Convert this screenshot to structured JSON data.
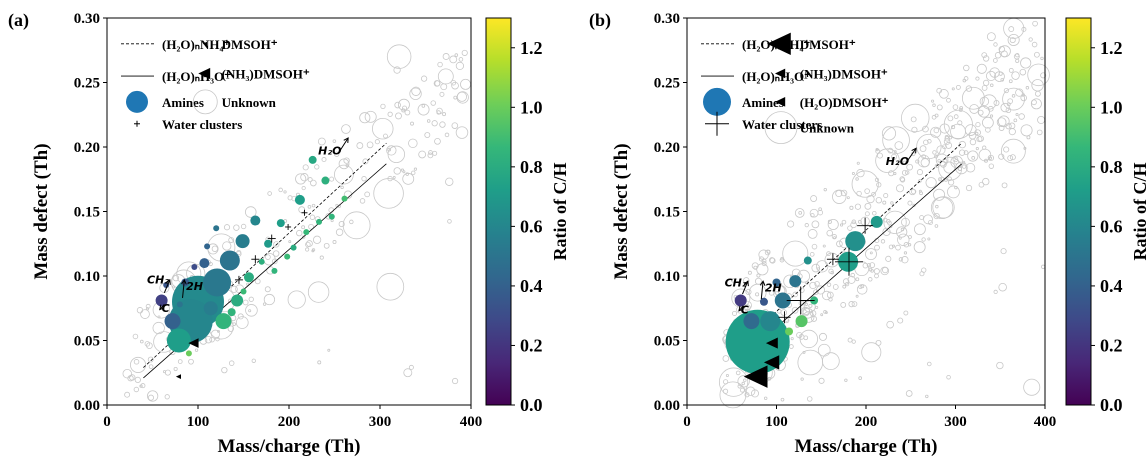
{
  "colormap": [
    "#440154",
    "#482878",
    "#3e4a89",
    "#31688e",
    "#26828e",
    "#1f9e89",
    "#35b779",
    "#6ece58",
    "#b5de2b",
    "#fde725"
  ],
  "colors": {
    "unknown": "#c8c8c8",
    "black": "#000000"
  },
  "panels": [
    {
      "panel_label": "(a)",
      "xlabel": "Mass/charge (Th)",
      "ylabel": "Mass defect (Th)",
      "colorbar_label": "Ratio of C/H",
      "xticks": [
        "0",
        "100",
        "200",
        "300",
        "400"
      ],
      "yticks": [
        "0.00",
        "0.05",
        "0.10",
        "0.15",
        "0.20",
        "0.25",
        "0.30"
      ],
      "cbticks": [
        "0.0",
        "0.2",
        "0.4",
        "0.6",
        "0.8",
        "1.0",
        "1.2"
      ],
      "legend": [
        {
          "marker": "dash",
          "label": "(H₂O)ₙNH₄⁺"
        },
        {
          "marker": "solid",
          "label": "(H₂O)ₙH₃O⁺"
        },
        {
          "marker": "circle",
          "label": "Amines"
        },
        {
          "marker": "plus",
          "label": "Water clusters"
        },
        {
          "marker": "tri",
          "label": "DMSOH⁺"
        },
        {
          "marker": "tri",
          "label": "(NH₃)DMSOH⁺"
        },
        {
          "marker": "open",
          "label": "Unknown"
        }
      ],
      "annotations": [
        {
          "text": "H₂O",
          "x": 232,
          "y": 0.194
        },
        {
          "text": "CH₂",
          "x": 44,
          "y": 0.094
        },
        {
          "text": "2H",
          "x": 87,
          "y": 0.089
        },
        {
          "text": "C",
          "x": 60,
          "y": 0.072
        }
      ],
      "chart_data": {
        "type": "scatter",
        "xlim": [
          0,
          400
        ],
        "ylim": [
          0,
          0.3
        ],
        "clim": [
          0,
          1.3
        ],
        "lines": [
          {
            "name": "(H₂O)ₙNH₄⁺",
            "style": "dashed",
            "x": [
              40,
              307
            ],
            "y": [
              0.029,
              0.203
            ]
          },
          {
            "name": "(H₂O)ₙH₃O⁺",
            "style": "solid",
            "x": [
              40,
              307
            ],
            "y": [
              0.021,
              0.187
            ]
          }
        ],
        "amines": [
          {
            "x": 100,
            "y": 0.08,
            "s": 26,
            "c": 0.62
          },
          {
            "x": 92,
            "y": 0.065,
            "s": 22,
            "c": 0.6
          },
          {
            "x": 79,
            "y": 0.05,
            "s": 12,
            "c": 0.72
          },
          {
            "x": 121,
            "y": 0.095,
            "s": 14,
            "c": 0.52
          },
          {
            "x": 135,
            "y": 0.112,
            "s": 10,
            "c": 0.5
          },
          {
            "x": 72,
            "y": 0.065,
            "s": 8,
            "c": 0.4
          },
          {
            "x": 60,
            "y": 0.081,
            "s": 6,
            "c": 0.25
          },
          {
            "x": 128,
            "y": 0.065,
            "s": 8,
            "c": 0.85
          },
          {
            "x": 149,
            "y": 0.127,
            "s": 7,
            "c": 0.55
          },
          {
            "x": 143,
            "y": 0.081,
            "s": 6,
            "c": 0.8
          },
          {
            "x": 163,
            "y": 0.143,
            "s": 5,
            "c": 0.6
          },
          {
            "x": 156,
            "y": 0.099,
            "s": 5,
            "c": 0.8
          },
          {
            "x": 114,
            "y": 0.075,
            "s": 7,
            "c": 0.55
          },
          {
            "x": 107,
            "y": 0.11,
            "s": 5,
            "c": 0.4
          },
          {
            "x": 86,
            "y": 0.095,
            "s": 4,
            "c": 0.38
          },
          {
            "x": 177,
            "y": 0.125,
            "s": 4,
            "c": 0.7
          },
          {
            "x": 191,
            "y": 0.141,
            "s": 4,
            "c": 0.72
          },
          {
            "x": 212,
            "y": 0.159,
            "s": 5,
            "c": 0.72
          },
          {
            "x": 226,
            "y": 0.19,
            "s": 4,
            "c": 0.78
          },
          {
            "x": 240,
            "y": 0.174,
            "s": 4,
            "c": 0.82
          },
          {
            "x": 233,
            "y": 0.142,
            "s": 3,
            "c": 0.85
          },
          {
            "x": 205,
            "y": 0.122,
            "s": 3,
            "c": 0.8
          },
          {
            "x": 170,
            "y": 0.111,
            "s": 3,
            "c": 0.82
          },
          {
            "x": 184,
            "y": 0.104,
            "s": 3,
            "c": 0.85
          },
          {
            "x": 96,
            "y": 0.107,
            "s": 3,
            "c": 0.3
          },
          {
            "x": 110,
            "y": 0.123,
            "s": 3,
            "c": 0.42
          },
          {
            "x": 65,
            "y": 0.093,
            "s": 3,
            "c": 0.34
          },
          {
            "x": 90,
            "y": 0.04,
            "s": 3,
            "c": 1.0
          },
          {
            "x": 137,
            "y": 0.072,
            "s": 4,
            "c": 0.85
          },
          {
            "x": 150,
            "y": 0.088,
            "s": 3,
            "c": 0.88
          },
          {
            "x": 80,
            "y": 0.078,
            "s": 3,
            "c": 0.5
          },
          {
            "x": 120,
            "y": 0.137,
            "s": 3,
            "c": 0.5
          },
          {
            "x": 198,
            "y": 0.115,
            "s": 3,
            "c": 0.88
          },
          {
            "x": 219,
            "y": 0.134,
            "s": 3,
            "c": 0.87
          },
          {
            "x": 247,
            "y": 0.146,
            "s": 3,
            "c": 0.85
          },
          {
            "x": 261,
            "y": 0.16,
            "s": 3,
            "c": 0.9
          }
        ],
        "water_clusters": [
          {
            "x": 163,
            "y": 0.113,
            "s": 4
          },
          {
            "x": 181,
            "y": 0.129,
            "s": 4
          },
          {
            "x": 145,
            "y": 0.097,
            "s": 4
          },
          {
            "x": 199,
            "y": 0.138,
            "s": 3
          },
          {
            "x": 217,
            "y": 0.149,
            "s": 3
          }
        ],
        "dmsoh": [
          {
            "x": 79,
            "y": 0.022,
            "s": 3
          },
          {
            "x": 96,
            "y": 0.048,
            "s": 6
          }
        ],
        "unknown_seed": 17,
        "unknown_count": 260,
        "unknown_x_range": [
          20,
          395
        ]
      }
    },
    {
      "panel_label": "(b)",
      "xlabel": "Mass/charge (Th)",
      "ylabel": "Mass defect (Th)",
      "colorbar_label": "Ratio of C/H",
      "xticks": [
        "0",
        "100",
        "200",
        "300",
        "400"
      ],
      "yticks": [
        "0.00",
        "0.05",
        "0.10",
        "0.15",
        "0.20",
        "0.25",
        "0.30"
      ],
      "cbticks": [
        "0.0",
        "0.2",
        "0.4",
        "0.6",
        "0.8",
        "1.0",
        "1.2"
      ],
      "legend": [
        {
          "marker": "dash",
          "label": "(H₂O)ₙNH₄⁺"
        },
        {
          "marker": "solid",
          "label": "(H₂O)ₙH₃O⁺"
        },
        {
          "marker": "circle",
          "label": "Amines"
        },
        {
          "marker": "plus",
          "label": "Water clusters"
        },
        {
          "marker": "tribig",
          "label": "DMSOH⁺"
        },
        {
          "marker": "tri",
          "label": "(NH₃)DMSOH⁺"
        },
        {
          "marker": "tri",
          "label": "(H₂O)DMSOH⁺"
        },
        {
          "marker": "open",
          "label": "Unknown"
        }
      ],
      "annotations": [
        {
          "text": "H₂O",
          "x": 222,
          "y": 0.186
        },
        {
          "text": "CH₂",
          "x": 42,
          "y": 0.092
        },
        {
          "text": "2H",
          "x": 87,
          "y": 0.088
        },
        {
          "text": "C",
          "x": 60,
          "y": 0.071
        }
      ],
      "chart_data": {
        "type": "scatter",
        "xlim": [
          0,
          400
        ],
        "ylim": [
          0,
          0.3
        ],
        "clim": [
          0,
          1.3
        ],
        "lines": [
          {
            "name": "(H₂O)ₙNH₄⁺",
            "style": "dashed",
            "x": [
              80,
              307
            ],
            "y": [
              0.06,
              0.203
            ]
          },
          {
            "name": "(H₂O)ₙH₃O⁺",
            "style": "solid",
            "x": [
              80,
              307
            ],
            "y": [
              0.048,
              0.187
            ]
          }
        ],
        "amines": [
          {
            "x": 79,
            "y": 0.049,
            "s": 32,
            "c": 0.72
          },
          {
            "x": 93,
            "y": 0.065,
            "s": 10,
            "c": 0.6
          },
          {
            "x": 72,
            "y": 0.065,
            "s": 8,
            "c": 0.45
          },
          {
            "x": 107,
            "y": 0.081,
            "s": 8,
            "c": 0.5
          },
          {
            "x": 60,
            "y": 0.081,
            "s": 6,
            "c": 0.22
          },
          {
            "x": 121,
            "y": 0.096,
            "s": 6,
            "c": 0.5
          },
          {
            "x": 188,
            "y": 0.127,
            "s": 10,
            "c": 0.65
          },
          {
            "x": 180,
            "y": 0.111,
            "s": 10,
            "c": 0.72
          },
          {
            "x": 128,
            "y": 0.065,
            "s": 6,
            "c": 0.95
          },
          {
            "x": 135,
            "y": 0.112,
            "s": 4,
            "c": 0.65
          },
          {
            "x": 142,
            "y": 0.081,
            "s": 4,
            "c": 0.85
          },
          {
            "x": 114,
            "y": 0.057,
            "s": 4,
            "c": 1.0
          },
          {
            "x": 212,
            "y": 0.142,
            "s": 6,
            "c": 0.7
          },
          {
            "x": 86,
            "y": 0.08,
            "s": 4,
            "c": 0.35
          },
          {
            "x": 100,
            "y": 0.095,
            "s": 4,
            "c": 0.42
          }
        ],
        "water_clusters": [
          {
            "x": 127,
            "y": 0.081,
            "s": 14
          },
          {
            "x": 181,
            "y": 0.111,
            "s": 14
          },
          {
            "x": 199,
            "y": 0.139,
            "s": 8
          },
          {
            "x": 109,
            "y": 0.068,
            "s": 6
          },
          {
            "x": 163,
            "y": 0.113,
            "s": 6
          }
        ],
        "dmsoh": [
          {
            "x": 79,
            "y": 0.022,
            "s": 14
          },
          {
            "x": 96,
            "y": 0.033,
            "s": 9
          },
          {
            "x": 96,
            "y": 0.048,
            "s": 7
          }
        ],
        "unknown_seed": 91,
        "unknown_count": 520,
        "unknown_x_range": [
          40,
          398
        ]
      }
    }
  ]
}
